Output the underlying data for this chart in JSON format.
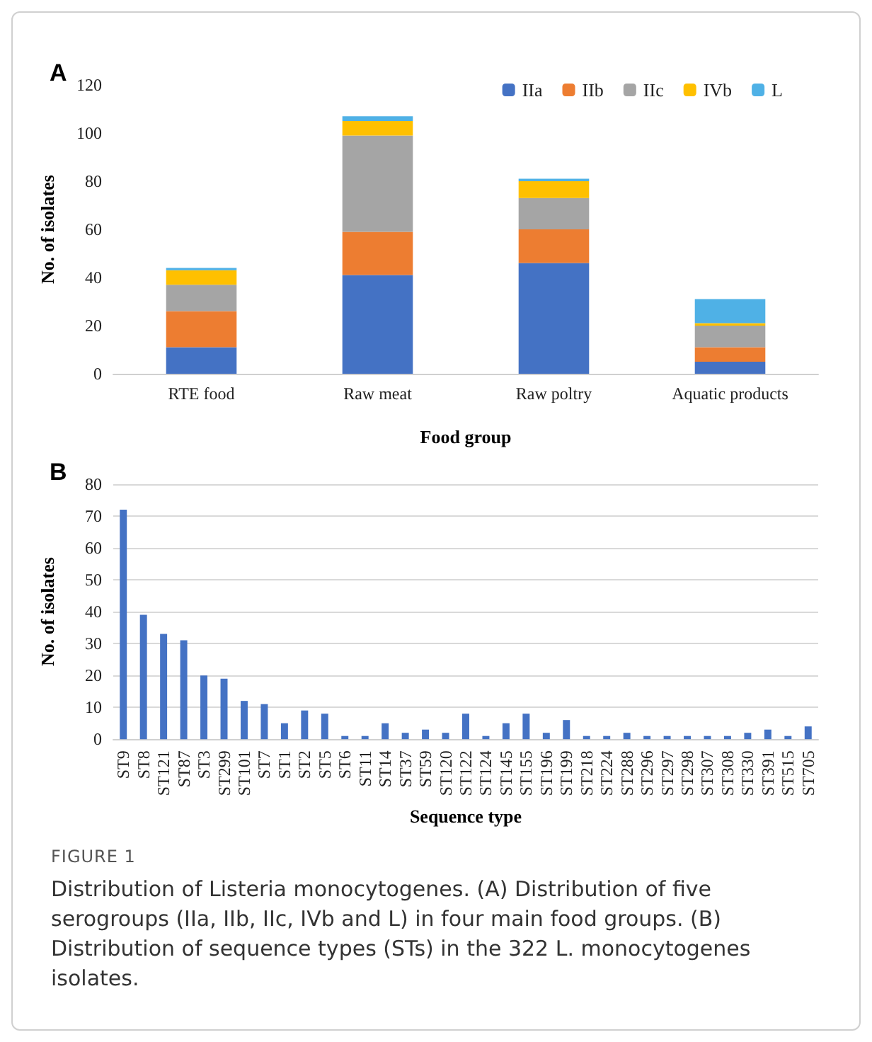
{
  "chart_data": [
    {
      "type": "bar",
      "title": "A",
      "xlabel": "Food group",
      "ylabel": "No. of isolates",
      "categories": [
        "RTE food",
        "Raw meat",
        "Raw poltry",
        "Aquatic products"
      ],
      "stacked": true,
      "ylim": [
        0,
        120
      ],
      "yticks": [
        0,
        20,
        40,
        60,
        80,
        100,
        120
      ],
      "grid": false,
      "legend": "top right",
      "series": [
        {
          "name": "IIa",
          "color": "#4472c4",
          "values": [
            11,
            41,
            46,
            5
          ]
        },
        {
          "name": "IIb",
          "color": "#ed7d31",
          "values": [
            15,
            18,
            14,
            6
          ]
        },
        {
          "name": "IIc",
          "color": "#a5a5a5",
          "values": [
            11,
            40,
            13,
            9
          ]
        },
        {
          "name": "IVb",
          "color": "#ffc000",
          "values": [
            6,
            6,
            7,
            1
          ]
        },
        {
          "name": "L",
          "color": "#4fb1e6",
          "values": [
            1,
            2,
            1,
            10
          ]
        }
      ]
    },
    {
      "type": "bar",
      "title": "B",
      "xlabel": "Sequence type",
      "ylabel": "No. of isolates",
      "categories": [
        "ST9",
        "ST8",
        "ST121",
        "ST87",
        "ST3",
        "ST299",
        "ST101",
        "ST7",
        "ST1",
        "ST2",
        "ST5",
        "ST6",
        "ST11",
        "ST14",
        "ST37",
        "ST59",
        "ST120",
        "ST122",
        "ST124",
        "ST145",
        "ST155",
        "ST196",
        "ST199",
        "ST218",
        "ST224",
        "ST288",
        "ST296",
        "ST297",
        "ST298",
        "ST307",
        "ST308",
        "ST330",
        "ST391",
        "ST515",
        "ST705"
      ],
      "ylim": [
        0,
        80
      ],
      "yticks": [
        0,
        10,
        20,
        30,
        40,
        50,
        60,
        70,
        80
      ],
      "grid": "y",
      "series": [
        {
          "color": "#4472c4",
          "values": [
            72,
            39,
            33,
            31,
            20,
            19,
            12,
            11,
            5,
            9,
            8,
            1,
            1,
            5,
            2,
            3,
            2,
            8,
            1,
            5,
            8,
            2,
            6,
            1,
            1,
            2,
            1,
            1,
            1,
            1,
            1,
            2,
            3,
            1,
            4
          ]
        }
      ],
      "annotations": [
        "FIGURE 1",
        "Distribution of Listeria monocytogenes. (A) Distribution of five serogroups (IIa, IIb, IIc, IVb and L) in four main food groups. (B) Distribution of sequence types (STs) in the 322 L. monocytogenes isolates."
      ]
    }
  ]
}
